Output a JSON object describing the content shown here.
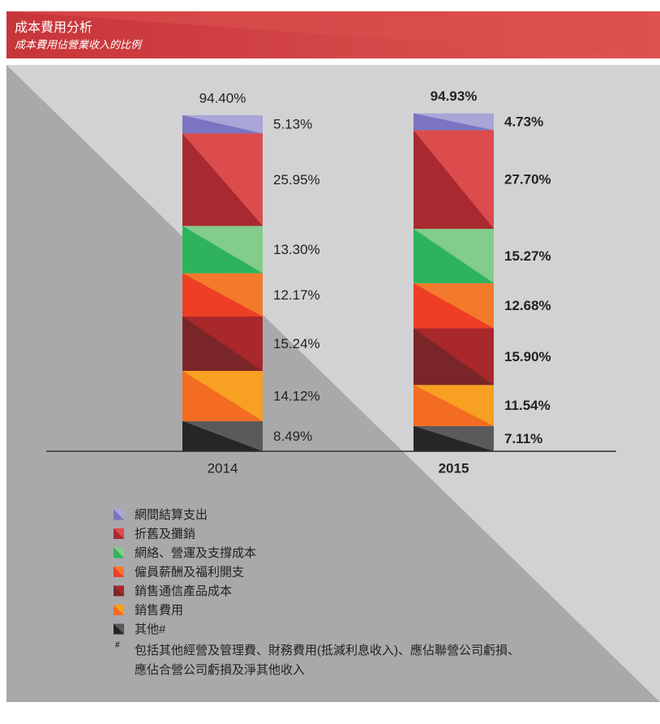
{
  "header": {
    "title": "成本費用分析",
    "subtitle": "成本費用佔營業收入的比例"
  },
  "chart_data": {
    "type": "stacked_bar",
    "categories": [
      "2014",
      "2015"
    ],
    "bold_categories": [
      false,
      true
    ],
    "ylim": [
      0,
      100
    ],
    "totals": [
      94.4,
      94.93
    ],
    "totals_labels": [
      "94.40%",
      "94.93%"
    ],
    "series": [
      {
        "name": "其他#",
        "colors": [
          "#5a5a5c",
          "#262626"
        ],
        "values": [
          8.49,
          7.11
        ],
        "value_labels": [
          "8.49%",
          "7.11%"
        ]
      },
      {
        "name": "銷售費用",
        "colors": [
          "#f7a021",
          "#f36c21"
        ],
        "values": [
          14.12,
          11.54
        ],
        "value_labels": [
          "14.12%",
          "11.54%"
        ]
      },
      {
        "name": "銷售通信產品成本",
        "colors": [
          "#a8282c",
          "#7a2628"
        ],
        "values": [
          15.24,
          15.9
        ],
        "value_labels": [
          "15.24%",
          "15.90%"
        ]
      },
      {
        "name": "僱員薪酬及福利開支",
        "colors": [
          "#f37a2c",
          "#ee3e24"
        ],
        "values": [
          12.17,
          12.68
        ],
        "value_labels": [
          "12.17%",
          "12.68%"
        ]
      },
      {
        "name": "網絡、營運及支撐成本",
        "colors": [
          "#82cc8c",
          "#2eb35c"
        ],
        "values": [
          13.3,
          15.27
        ],
        "value_labels": [
          "13.30%",
          "15.27%"
        ]
      },
      {
        "name": "折舊及攤銷",
        "colors": [
          "#dc4c4c",
          "#a82a30"
        ],
        "values": [
          25.95,
          27.7
        ],
        "value_labels": [
          "25.95%",
          "27.70%"
        ]
      },
      {
        "name": "網間結算支出",
        "colors": [
          "#a9a5d8",
          "#7b74c0"
        ],
        "values": [
          5.13,
          4.73
        ],
        "value_labels": [
          "5.13%",
          "4.73%"
        ]
      }
    ],
    "footnote": {
      "marker": "#",
      "lines": [
        "包括其他經營及管理費、財務費用(抵減利息收入)、應佔聯營公司虧損、",
        "應佔合營公司虧損及淨其他收入"
      ]
    }
  }
}
